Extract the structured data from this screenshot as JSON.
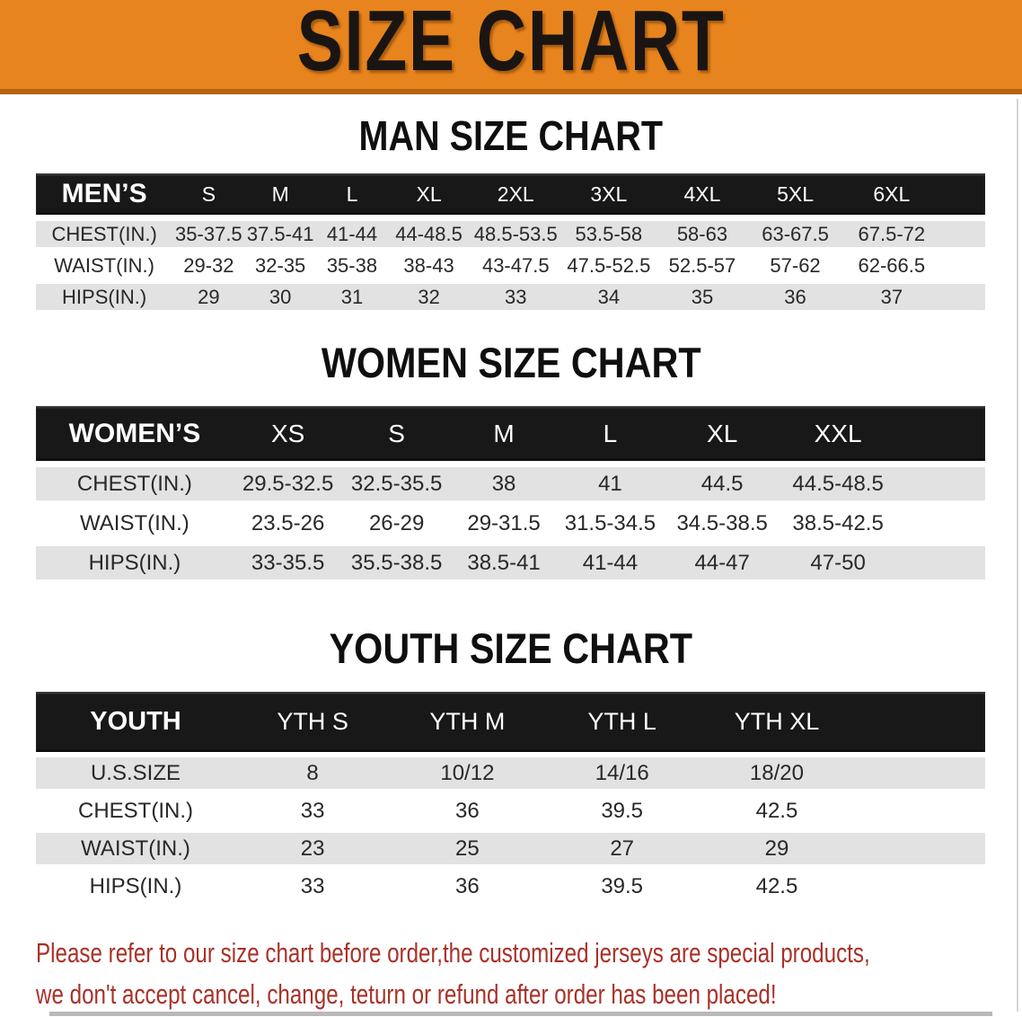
{
  "banner": {
    "title": "SIZE CHART"
  },
  "colors": {
    "banner_bg": "#E8841D",
    "banner_edge": "#B5650F",
    "table_header_bg": "#181818",
    "row_gray": "#E2E2E2",
    "disclaimer_red": "#A93129"
  },
  "sections": [
    {
      "id": "men",
      "title": "MAN SIZE CHART",
      "header_label": "MEN’S",
      "columns": [
        "S",
        "M",
        "L",
        "XL",
        "2XL",
        "3XL",
        "4XL",
        "5XL",
        "6XL"
      ],
      "rows": [
        {
          "label": "CHEST(IN.)",
          "values": [
            "35-37.5",
            "37.5-41",
            "41-44",
            "44-48.5",
            "48.5-53.5",
            "53.5-58",
            "58-63",
            "63-67.5",
            "67.5-72"
          ]
        },
        {
          "label": "WAIST(IN.)",
          "values": [
            "29-32",
            "32-35",
            "35-38",
            "38-43",
            "43-47.5",
            "47.5-52.5",
            "52.5-57",
            "57-62",
            "62-66.5"
          ]
        },
        {
          "label": "HIPS(IN.)",
          "values": [
            "29",
            "30",
            "31",
            "32",
            "33",
            "34",
            "35",
            "36",
            "37"
          ]
        }
      ]
    },
    {
      "id": "women",
      "title": "WOMEN SIZE CHART",
      "header_label": "WOMEN’S",
      "columns": [
        "XS",
        "S",
        "M",
        "L",
        "XL",
        "XXL"
      ],
      "rows": [
        {
          "label": "CHEST(IN.)",
          "values": [
            "29.5-32.5",
            "32.5-35.5",
            "38",
            "41",
            "44.5",
            "44.5-48.5"
          ]
        },
        {
          "label": "WAIST(IN.)",
          "values": [
            "23.5-26",
            "26-29",
            "29-31.5",
            "31.5-34.5",
            "34.5-38.5",
            "38.5-42.5"
          ]
        },
        {
          "label": "HIPS(IN.)",
          "values": [
            "33-35.5",
            "35.5-38.5",
            "38.5-41",
            "41-44",
            "44-47",
            "47-50"
          ]
        }
      ]
    },
    {
      "id": "youth",
      "title": "YOUTH SIZE CHART",
      "header_label": "YOUTH",
      "columns": [
        "YTH S",
        "YTH M",
        "YTH L",
        "YTH XL"
      ],
      "rows": [
        {
          "label": "U.S.SIZE",
          "values": [
            "8",
            "10/12",
            "14/16",
            "18/20"
          ]
        },
        {
          "label": "CHEST(IN.)",
          "values": [
            "33",
            "36",
            "39.5",
            "42.5"
          ]
        },
        {
          "label": "WAIST(IN.)",
          "values": [
            "23",
            "25",
            "27",
            "29"
          ]
        },
        {
          "label": "HIPS(IN.)",
          "values": [
            "33",
            "36",
            "39.5",
            "42.5"
          ]
        }
      ]
    }
  ],
  "disclaimer": {
    "line1": "Please refer to our size chart before order,the customized jerseys are special products,",
    "line2": "we don't accept cancel, change, teturn or refund after order has been placed!"
  }
}
